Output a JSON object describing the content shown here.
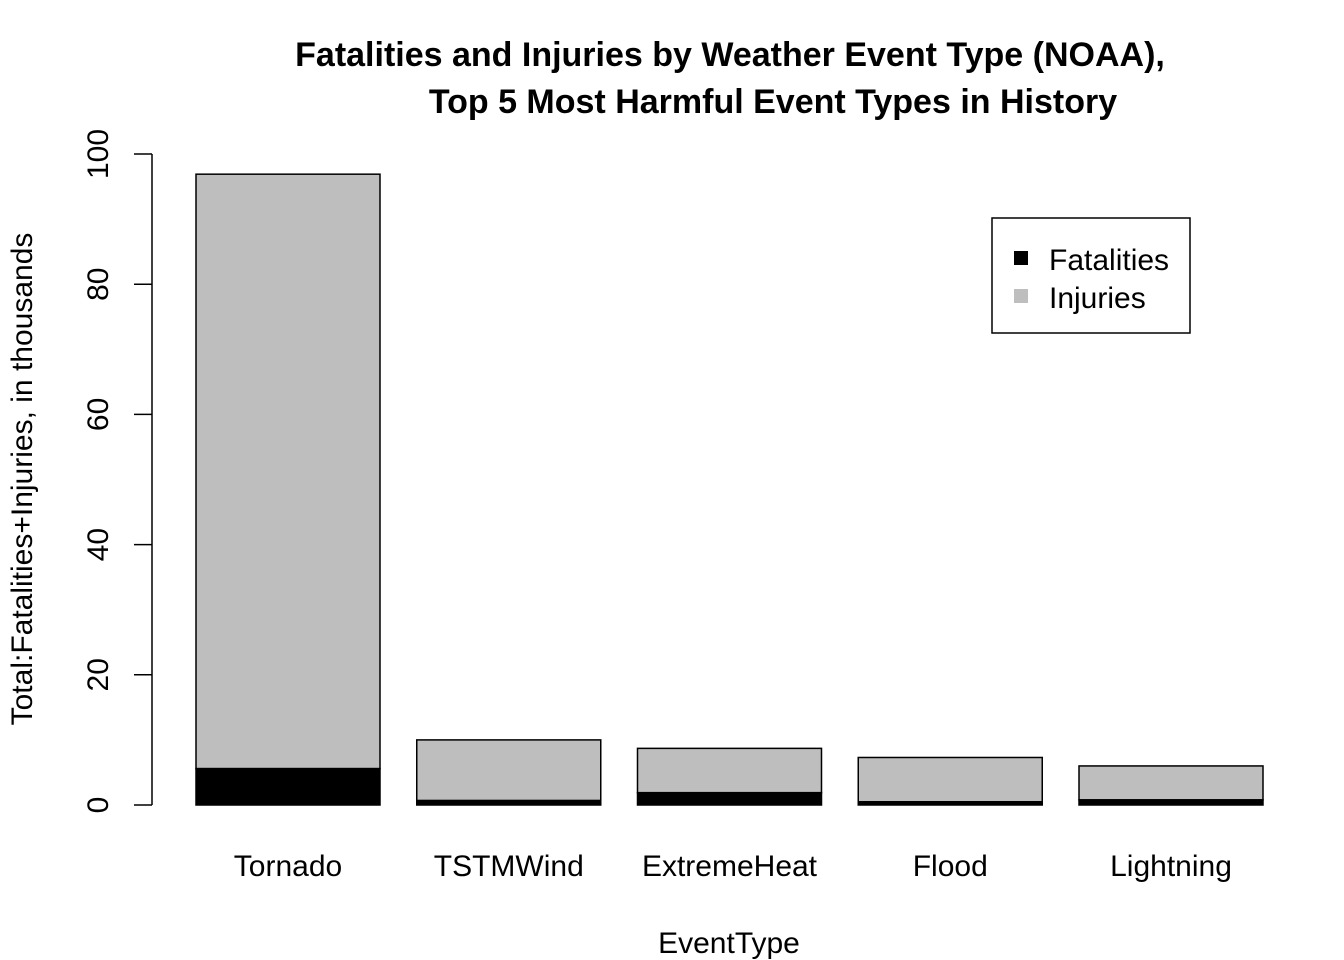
{
  "chart_data": {
    "type": "bar",
    "stacked": true,
    "title_line1": "Fatalities and Injuries by Weather Event Type (NOAA),",
    "title_line2": "Top 5 Most Harmful Event Types in History",
    "xlabel": "EventType",
    "ylabel": "Total:Fatalities+Injuries, in thousands",
    "ylim": [
      0,
      100
    ],
    "yticks": [
      "0",
      "20",
      "40",
      "60",
      "80",
      "100"
    ],
    "categories": [
      "Tornado",
      "TSTMWind",
      "ExtremeHeat",
      "Flood",
      "Lightning"
    ],
    "series": [
      {
        "name": "Fatalities",
        "color": "#000000",
        "values": [
          5.6,
          0.7,
          1.9,
          0.5,
          0.8
        ]
      },
      {
        "name": "Injuries",
        "color": "#bebebe",
        "values": [
          91.3,
          9.3,
          6.8,
          6.8,
          5.2
        ]
      }
    ],
    "legend": {
      "placement": "top-right",
      "entries": [
        "Fatalities",
        "Injuries"
      ]
    },
    "grid": false
  }
}
